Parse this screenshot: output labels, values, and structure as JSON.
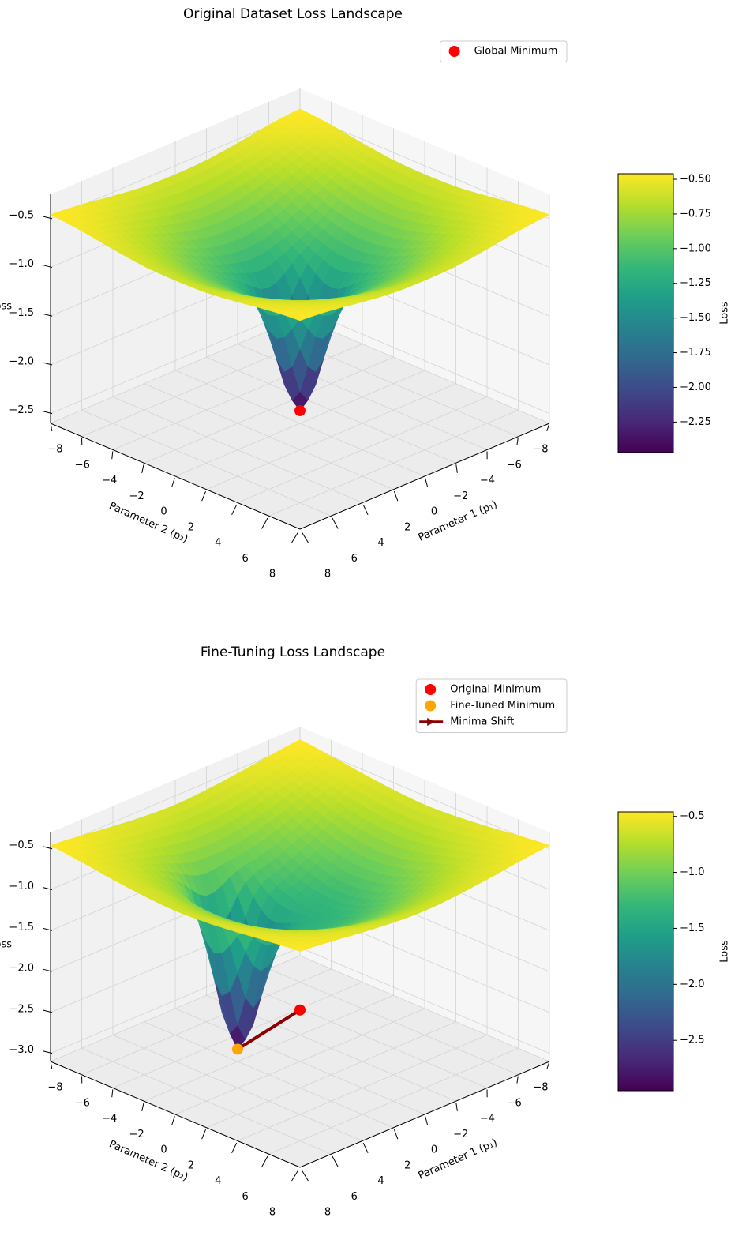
{
  "chart_data": [
    {
      "type": "surface",
      "title": "Original Dataset Loss Landscape",
      "xlabel": "Parameter 1 (p₁)",
      "ylabel": "Parameter 2 (p₂)",
      "zlabel": "Loss",
      "colorbar_label": "Loss",
      "colormap": "viridis",
      "legend": "upper right",
      "x": [
        -8,
        -6,
        -4,
        -2,
        0,
        2,
        4,
        6,
        8
      ],
      "y": [
        -8,
        -6,
        -4,
        -2,
        0,
        2,
        4,
        6,
        8
      ],
      "z": [
        [
          -0.46,
          -0.49,
          -0.54,
          -0.58,
          -0.59,
          -0.58,
          -0.54,
          -0.49,
          -0.46
        ],
        [
          -0.49,
          -0.56,
          -0.65,
          -0.73,
          -0.77,
          -0.73,
          -0.65,
          -0.56,
          -0.49
        ],
        [
          -0.54,
          -0.65,
          -0.8,
          -0.94,
          -0.99,
          -0.94,
          -0.8,
          -0.65,
          -0.54
        ],
        [
          -0.58,
          -0.73,
          -0.94,
          -1.14,
          -1.35,
          -1.14,
          -0.94,
          -0.73,
          -0.58
        ],
        [
          -0.59,
          -0.77,
          -0.99,
          -1.35,
          -2.47,
          -1.35,
          -0.99,
          -0.77,
          -0.59
        ],
        [
          -0.58,
          -0.73,
          -0.94,
          -1.14,
          -1.35,
          -1.14,
          -0.94,
          -0.73,
          -0.58
        ],
        [
          -0.54,
          -0.65,
          -0.8,
          -0.94,
          -0.99,
          -0.94,
          -0.8,
          -0.65,
          -0.54
        ],
        [
          -0.49,
          -0.56,
          -0.65,
          -0.73,
          -0.77,
          -0.73,
          -0.65,
          -0.56,
          -0.49
        ],
        [
          -0.46,
          -0.49,
          -0.54,
          -0.58,
          -0.59,
          -0.58,
          -0.54,
          -0.49,
          -0.46
        ]
      ],
      "xlim": [
        -8,
        8
      ],
      "ylim": [
        -8,
        8
      ],
      "zlim": [
        -2.6,
        -0.25
      ],
      "xticks": [
        {
          "value": -8,
          "label": "−8"
        },
        {
          "value": -6,
          "label": "−6"
        },
        {
          "value": -4,
          "label": "−4"
        },
        {
          "value": -2,
          "label": "−2"
        },
        0,
        2,
        4,
        6,
        8
      ],
      "yticks": [
        {
          "value": -8,
          "label": "−8"
        },
        {
          "value": -6,
          "label": "−6"
        },
        {
          "value": -4,
          "label": "−4"
        },
        {
          "value": -2,
          "label": "−2"
        },
        0,
        2,
        4,
        6,
        8
      ],
      "zticks": [
        {
          "value": -0.5,
          "label": "−0.5"
        },
        {
          "value": -1.0,
          "label": "−1.0"
        },
        {
          "value": -1.5,
          "label": "−1.5"
        },
        {
          "value": -2.0,
          "label": "−2.0"
        },
        {
          "value": -2.5,
          "label": "−2.5"
        }
      ],
      "cticks": [
        {
          "value": -0.5,
          "label": "−0.50"
        },
        {
          "value": -0.75,
          "label": "−0.75"
        },
        {
          "value": -1.0,
          "label": "−1.00"
        },
        {
          "value": -1.25,
          "label": "−1.25"
        },
        {
          "value": -1.5,
          "label": "−1.50"
        },
        {
          "value": -1.75,
          "label": "−1.75"
        },
        {
          "value": -2.0,
          "label": "−2.00"
        },
        {
          "value": -2.25,
          "label": "−2.25"
        }
      ],
      "points": [
        {
          "name": "Global Minimum",
          "color": "#ff0000",
          "p1": 0,
          "p2": 0,
          "z": -2.47
        }
      ]
    },
    {
      "type": "surface",
      "title": "Fine-Tuning Loss Landscape",
      "xlabel": "Parameter 1 (p₁)",
      "ylabel": "Parameter 2 (p₂)",
      "zlabel": "Loss",
      "colorbar_label": "Loss",
      "colormap": "viridis",
      "legend": "upper right",
      "x": [
        -8,
        -6,
        -4,
        -2,
        0,
        2,
        4,
        6,
        8
      ],
      "y": [
        -8,
        -6,
        -4,
        -2,
        0,
        2,
        4,
        6,
        8
      ],
      "z": [
        [
          -0.46,
          -0.5,
          -0.55,
          -0.59,
          -0.61,
          -0.59,
          -0.55,
          -0.5,
          -0.46
        ],
        [
          -0.5,
          -0.58,
          -0.68,
          -0.77,
          -0.81,
          -0.77,
          -0.68,
          -0.58,
          -0.5
        ],
        [
          -0.55,
          -0.68,
          -0.85,
          -1.0,
          -1.06,
          -1.0,
          -0.85,
          -0.68,
          -0.55
        ],
        [
          -0.59,
          -0.77,
          -1.0,
          -1.2,
          -1.28,
          -1.2,
          -1.0,
          -0.77,
          -0.59
        ],
        [
          -0.61,
          -0.81,
          -1.09,
          -1.52,
          -1.4,
          -1.28,
          -1.06,
          -0.81,
          -0.61
        ],
        [
          -0.59,
          -0.77,
          -1.24,
          -2.95,
          -1.52,
          -1.2,
          -1.0,
          -0.77,
          -0.59
        ],
        [
          -0.55,
          -0.68,
          -0.88,
          -1.24,
          -1.09,
          -1.0,
          -0.85,
          -0.68,
          -0.55
        ],
        [
          -0.5,
          -0.58,
          -0.68,
          -0.77,
          -0.81,
          -0.77,
          -0.68,
          -0.58,
          -0.5
        ],
        [
          -0.46,
          -0.5,
          -0.55,
          -0.59,
          -0.61,
          -0.59,
          -0.55,
          -0.5,
          -0.46
        ]
      ],
      "xlim": [
        -8,
        8
      ],
      "ylim": [
        -8,
        8
      ],
      "zlim": [
        -3.1,
        -0.3
      ],
      "xticks": [
        {
          "value": -8,
          "label": "−8"
        },
        {
          "value": -6,
          "label": "−6"
        },
        {
          "value": -4,
          "label": "−4"
        },
        {
          "value": -2,
          "label": "−2"
        },
        0,
        2,
        4,
        6,
        8
      ],
      "yticks": [
        {
          "value": -8,
          "label": "−8"
        },
        {
          "value": -6,
          "label": "−6"
        },
        {
          "value": -4,
          "label": "−4"
        },
        {
          "value": -2,
          "label": "−2"
        },
        0,
        2,
        4,
        6,
        8
      ],
      "zticks": [
        {
          "value": -0.5,
          "label": "−0.5"
        },
        {
          "value": -1.0,
          "label": "−1.0"
        },
        {
          "value": -1.5,
          "label": "−1.5"
        },
        {
          "value": -2.0,
          "label": "−2.0"
        },
        {
          "value": -2.5,
          "label": "−2.5"
        },
        {
          "value": -3.0,
          "label": "−3.0"
        }
      ],
      "cticks": [
        {
          "value": -0.5,
          "label": "−0.5"
        },
        {
          "value": -1.0,
          "label": "−1.0"
        },
        {
          "value": -1.5,
          "label": "−1.5"
        },
        {
          "value": -2.0,
          "label": "−2.0"
        },
        {
          "value": -2.5,
          "label": "−2.5"
        }
      ],
      "points": [
        {
          "name": "Original Minimum",
          "color": "#ff0000",
          "p1": 0,
          "p2": 0,
          "z": -2.47
        },
        {
          "name": "Fine-Tuned Minimum",
          "color": "#ffa500",
          "p1": 2,
          "p2": -2,
          "z": -2.95
        }
      ],
      "lines": [
        {
          "name": "Minima Shift",
          "color": "#8b0000"
        }
      ]
    }
  ]
}
